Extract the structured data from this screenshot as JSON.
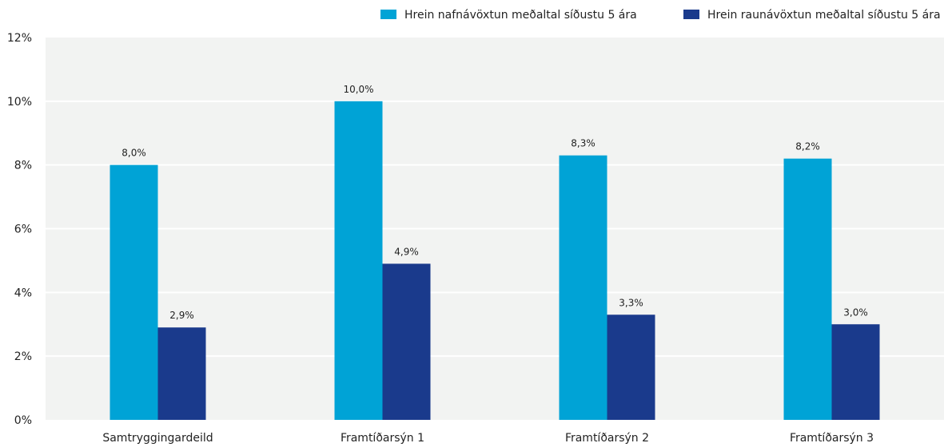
{
  "chart_data": {
    "type": "bar",
    "categories": [
      "Samtryggingardeild",
      "Framtíðarsýn 1",
      "Framtíðarsýn 2",
      "Framtíðarsýn 3"
    ],
    "series": [
      {
        "name": "Hrein nafnávöxtun meðaltal síðustu 5 ára",
        "values": [
          8.0,
          10.0,
          8.3,
          8.2
        ],
        "labels": [
          "8,0%",
          "10,0%",
          "8,3%",
          "8,2%"
        ],
        "color": "#00a3d6"
      },
      {
        "name": "Hrein raunávöxtun meðaltal síðustu 5 ára",
        "values": [
          2.9,
          4.9,
          3.3,
          3.0
        ],
        "labels": [
          "2,9%",
          "4,9%",
          "3,3%",
          "3,0%"
        ],
        "color": "#1a3a8c"
      }
    ],
    "ylim": [
      0,
      12
    ],
    "yticks": [
      0,
      2,
      4,
      6,
      8,
      10,
      12
    ],
    "ytick_labels": [
      "0%",
      "2%",
      "4%",
      "6%",
      "8%",
      "10%",
      "12%"
    ],
    "title": "",
    "xlabel": "",
    "ylabel": "",
    "grid": true,
    "legend_position": "top-right",
    "plot_background": "#f2f3f2",
    "grid_color": "#ffffff",
    "text_color": "#222222"
  }
}
